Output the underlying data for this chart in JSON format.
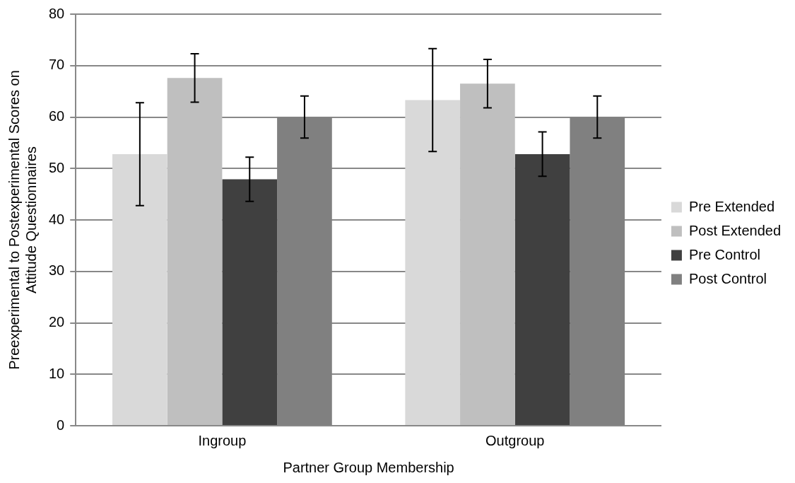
{
  "chart_data": {
    "type": "bar",
    "xlabel": "Partner Group Membership",
    "ylabel": "Preexperimental to Postexperimental Scores on Attitude Questionnaires",
    "categories": [
      "Ingroup",
      "Outgroup"
    ],
    "series": [
      {
        "name": "Pre Extended",
        "color": "#d9d9d9",
        "values": [
          52.8,
          63.3
        ],
        "errors": [
          10,
          10
        ]
      },
      {
        "name": "Post Extended",
        "color": "#bfbfbf",
        "values": [
          67.6,
          66.5
        ],
        "errors": [
          4.7,
          4.7
        ]
      },
      {
        "name": "Pre Control",
        "color": "#404040",
        "values": [
          47.9,
          52.8
        ],
        "errors": [
          4.3,
          4.3
        ]
      },
      {
        "name": "Post Control",
        "color": "#808080",
        "values": [
          60,
          60
        ],
        "errors": [
          4.1,
          4.1
        ]
      }
    ],
    "ylim": [
      0,
      80
    ],
    "yticks": [
      0,
      10,
      20,
      30,
      40,
      50,
      60,
      70,
      80
    ],
    "grid": "y",
    "legend": "right"
  }
}
